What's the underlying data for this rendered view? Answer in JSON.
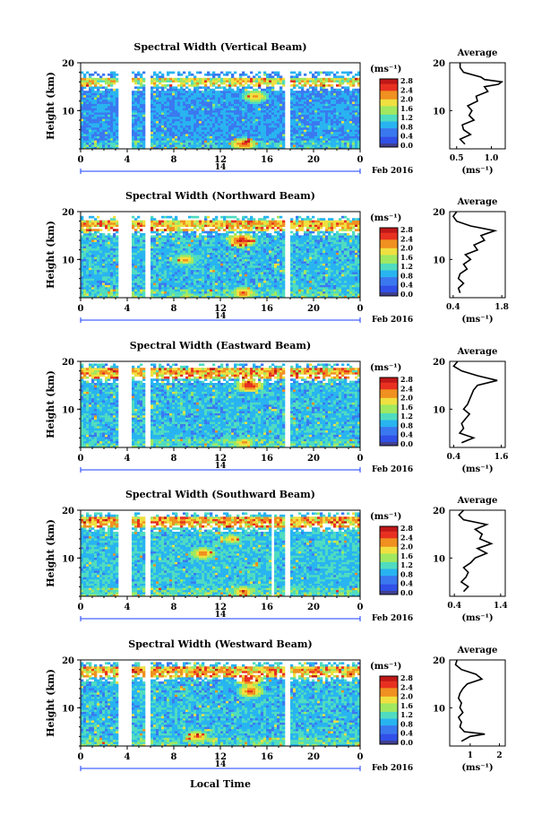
{
  "figure": {
    "date_label": "Feb 2016",
    "day_label": "14",
    "xlabel": "Local Time",
    "colorbar_unit": "(ms⁻¹)",
    "colorbar_ticks": [
      "0.0",
      "0.4",
      "0.8",
      "1.2",
      "1.6",
      "2.0",
      "2.4",
      "2.8"
    ],
    "height_label": "Height (km)",
    "avg_title": "Average",
    "avg_unit": "(ms⁻¹)",
    "colors": {
      "scale": [
        "#404090",
        "#3050e8",
        "#3a78f0",
        "#28b4f0",
        "#4fdcc0",
        "#a0e860",
        "#f0e040",
        "#f09020",
        "#e83020",
        "#c01818"
      ],
      "background": "#ffffff"
    }
  },
  "chart_data": [
    {
      "type": "heatmap",
      "title": "Spectral Width (Vertical Beam)",
      "x_ticks": [
        "0",
        "4",
        "8",
        "12",
        "16",
        "20",
        "0"
      ],
      "xlim": [
        0,
        24
      ],
      "ylim": [
        2,
        20
      ],
      "y_ticks": [
        "10",
        "20"
      ],
      "gaps_hours": [
        [
          3.3,
          4.3
        ],
        [
          5.5,
          5.9
        ],
        [
          17.6,
          17.9
        ]
      ],
      "top_km": 17,
      "base_level": 0.5,
      "features": [
        {
          "t": 14,
          "h": 3,
          "v": 2.6
        },
        {
          "t": 15,
          "h": 13,
          "v": 2.4
        }
      ],
      "average": {
        "title": "Average",
        "x_ticks": [
          "0.5",
          "1.0"
        ],
        "xlim": [
          0.4,
          1.2
        ],
        "profile": [
          [
            3,
            0.62
          ],
          [
            4,
            0.55
          ],
          [
            5,
            0.7
          ],
          [
            6,
            0.6
          ],
          [
            7,
            0.58
          ],
          [
            8,
            0.75
          ],
          [
            9,
            0.68
          ],
          [
            10,
            0.72
          ],
          [
            11,
            0.66
          ],
          [
            12,
            0.8
          ],
          [
            13,
            0.78
          ],
          [
            14,
            0.95
          ],
          [
            15,
            0.9
          ],
          [
            15.5,
            1.1
          ],
          [
            16,
            1.15
          ],
          [
            16.5,
            0.9
          ],
          [
            17,
            0.85
          ],
          [
            18,
            0.6
          ],
          [
            19,
            0.55
          ],
          [
            20,
            0.55
          ]
        ]
      }
    },
    {
      "type": "heatmap",
      "title": "Spectral Width (Northward Beam)",
      "x_ticks": [
        "0",
        "4",
        "8",
        "12",
        "16",
        "20",
        "0"
      ],
      "xlim": [
        0,
        24
      ],
      "ylim": [
        2,
        20
      ],
      "y_ticks": [
        "10",
        "20"
      ],
      "gaps_hours": [
        [
          3.3,
          4.3
        ],
        [
          5.5,
          5.9
        ],
        [
          17.6,
          17.9
        ]
      ],
      "top_km": 18,
      "base_level": 0.7,
      "features": [
        {
          "t": 14,
          "h": 3,
          "v": 2.5
        },
        {
          "t": 13.8,
          "h": 14,
          "v": 2.8
        },
        {
          "t": 9,
          "h": 10,
          "v": 2.3
        }
      ],
      "average": {
        "title": "Average",
        "x_ticks": [
          "0.4",
          "1.8"
        ],
        "xlim": [
          0.3,
          1.9
        ],
        "profile": [
          [
            3,
            0.6
          ],
          [
            4,
            0.55
          ],
          [
            5,
            0.7
          ],
          [
            6,
            0.55
          ],
          [
            7,
            0.6
          ],
          [
            8,
            0.8
          ],
          [
            9,
            0.7
          ],
          [
            10,
            0.9
          ],
          [
            11,
            0.75
          ],
          [
            12,
            1.1
          ],
          [
            13,
            1.0
          ],
          [
            14,
            1.3
          ],
          [
            15,
            1.2
          ],
          [
            16,
            1.6
          ],
          [
            17,
            0.9
          ],
          [
            18,
            0.5
          ],
          [
            19,
            0.4
          ],
          [
            20,
            0.5
          ]
        ]
      }
    },
    {
      "type": "heatmap",
      "title": "Spectral Width (Eastward Beam)",
      "x_ticks": [
        "0",
        "4",
        "8",
        "12",
        "16",
        "20",
        "0"
      ],
      "xlim": [
        0,
        24
      ],
      "ylim": [
        2,
        20
      ],
      "y_ticks": [
        "10",
        "20"
      ],
      "gaps_hours": [
        [
          3.3,
          4.3
        ],
        [
          5.5,
          5.9
        ],
        [
          17.6,
          17.9
        ]
      ],
      "top_km": 18.5,
      "base_level": 0.7,
      "features": [
        {
          "t": 14.5,
          "h": 15,
          "v": 2.8
        },
        {
          "t": 14,
          "h": 3,
          "v": 2.3
        }
      ],
      "average": {
        "title": "Average",
        "x_ticks": [
          "0.4",
          "1.6"
        ],
        "xlim": [
          0.3,
          1.7
        ],
        "profile": [
          [
            3,
            0.6
          ],
          [
            4,
            0.9
          ],
          [
            5,
            0.55
          ],
          [
            6,
            0.65
          ],
          [
            7,
            0.6
          ],
          [
            8,
            0.7
          ],
          [
            9,
            0.8
          ],
          [
            10,
            0.65
          ],
          [
            11,
            0.75
          ],
          [
            12,
            0.8
          ],
          [
            13,
            0.85
          ],
          [
            14,
            0.9
          ],
          [
            15,
            1.0
          ],
          [
            16,
            1.5
          ],
          [
            17,
            1.0
          ],
          [
            18,
            0.6
          ],
          [
            19,
            0.4
          ],
          [
            20,
            0.5
          ]
        ]
      }
    },
    {
      "type": "heatmap",
      "title": "Spectral Width (Southward Beam)",
      "x_ticks": [
        "0",
        "4",
        "8",
        "12",
        "16",
        "20",
        "0"
      ],
      "xlim": [
        0,
        24
      ],
      "ylim": [
        2,
        20
      ],
      "y_ticks": [
        "10",
        "20"
      ],
      "gaps_hours": [
        [
          3.3,
          4.3
        ],
        [
          5.5,
          5.9
        ],
        [
          16.4,
          16.6
        ],
        [
          17.6,
          17.9
        ]
      ],
      "top_km": 18.5,
      "base_level": 0.75,
      "features": [
        {
          "t": 10.5,
          "h": 11,
          "v": 2.5
        },
        {
          "t": 14,
          "h": 3,
          "v": 2.4
        },
        {
          "t": 13,
          "h": 14,
          "v": 2.2
        }
      ],
      "average": {
        "title": "Average",
        "x_ticks": [
          "0.4",
          "1.4"
        ],
        "xlim": [
          0.3,
          1.5
        ],
        "profile": [
          [
            3,
            0.6
          ],
          [
            4,
            0.7
          ],
          [
            5,
            0.55
          ],
          [
            6,
            0.65
          ],
          [
            7,
            0.7
          ],
          [
            8,
            0.6
          ],
          [
            9,
            0.75
          ],
          [
            10,
            0.85
          ],
          [
            11,
            1.1
          ],
          [
            12,
            0.9
          ],
          [
            13,
            1.2
          ],
          [
            14,
            0.95
          ],
          [
            15,
            1.0
          ],
          [
            16,
            0.85
          ],
          [
            17,
            1.1
          ],
          [
            18,
            0.6
          ],
          [
            19,
            0.5
          ],
          [
            20,
            0.6
          ]
        ]
      }
    },
    {
      "type": "heatmap",
      "title": "Spectral Width (Westward Beam)",
      "x_ticks": [
        "0",
        "4",
        "8",
        "12",
        "16",
        "20",
        "0"
      ],
      "xlim": [
        0,
        24
      ],
      "ylim": [
        2,
        20
      ],
      "y_ticks": [
        "10",
        "20"
      ],
      "gaps_hours": [
        [
          3.3,
          4.3
        ],
        [
          5.5,
          5.9
        ],
        [
          17.6,
          17.9
        ]
      ],
      "top_km": 18.5,
      "base_level": 0.7,
      "features": [
        {
          "t": 14.5,
          "h": 16,
          "v": 2.8
        },
        {
          "t": 14.6,
          "h": 13.5,
          "v": 2.6
        },
        {
          "t": 10,
          "h": 4,
          "v": 2.4
        }
      ],
      "average": {
        "title": "Average",
        "x_ticks": [
          "1",
          "2"
        ],
        "xlim": [
          0.3,
          2.2
        ],
        "profile": [
          [
            3,
            0.7
          ],
          [
            4,
            1.0
          ],
          [
            4.5,
            1.5
          ],
          [
            5,
            0.8
          ],
          [
            6,
            0.65
          ],
          [
            7,
            0.7
          ],
          [
            8,
            0.6
          ],
          [
            9,
            0.75
          ],
          [
            10,
            0.65
          ],
          [
            11,
            0.7
          ],
          [
            12,
            0.6
          ],
          [
            13,
            0.65
          ],
          [
            14,
            0.75
          ],
          [
            15,
            0.9
          ],
          [
            16,
            1.4
          ],
          [
            17,
            1.2
          ],
          [
            18,
            0.7
          ],
          [
            19,
            0.5
          ],
          [
            20,
            0.55
          ]
        ]
      }
    }
  ]
}
